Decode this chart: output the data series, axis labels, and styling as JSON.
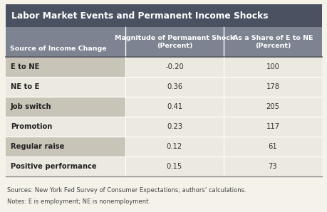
{
  "title": "Labor Market Events and Permanent Income Shocks",
  "col_headers": [
    "Source of Income Change",
    "Magnitude of Permanent Shock\n(Percent)",
    "As a Share of E to NE\n(Percent)"
  ],
  "rows": [
    [
      "E to NE",
      "-0.20",
      "100"
    ],
    [
      "NE to E",
      "0.36",
      "178"
    ],
    [
      "Job switch",
      "0.41",
      "205"
    ],
    [
      "Promotion",
      "0.23",
      "117"
    ],
    [
      "Regular raise",
      "0.12",
      "61"
    ],
    [
      "Positive performance",
      "0.15",
      "73"
    ]
  ],
  "footer_lines": [
    "Sources: New York Fed Survey of Consumer Expectations; authors’ calculations.",
    "Notes: E is employment; NE is nonemployment."
  ],
  "title_bg": "#4a5160",
  "title_color": "#ffffff",
  "header_bg": "#7d8390",
  "header_color": "#ffffff",
  "row_bg_label_odd": "#c8c4b8",
  "row_bg_label_even": "#eceae0",
  "row_bg_data_odd": "#eceae0",
  "row_bg_data_even": "#eceae0",
  "separator_color": "#ffffff",
  "thick_separator_color": "#555a62",
  "outer_border_color": "#888888",
  "footer_color": "#444444",
  "fig_bg": "#f5f2ea"
}
